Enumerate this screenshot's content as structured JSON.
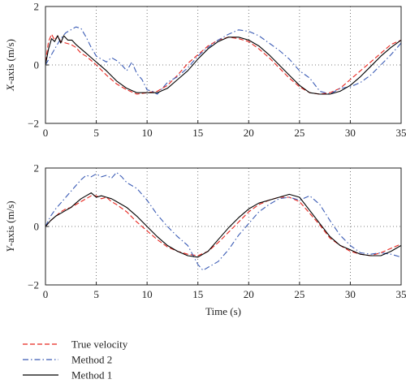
{
  "chart_data": [
    {
      "type": "line",
      "ylabel": "X-axis (m/s)",
      "xlabel": "",
      "xlim": [
        0,
        35
      ],
      "ylim": [
        -2,
        2
      ],
      "xticks": [
        0,
        5,
        10,
        15,
        20,
        25,
        30,
        35
      ],
      "yticks": [
        -2,
        0,
        2
      ],
      "grid": "dotted, vertical at x ticks, horizontal at 0",
      "series": [
        {
          "name": "True velocity",
          "color": "#e8261f",
          "style": "dashed",
          "x": [
            0,
            0.3,
            0.6,
            0.9,
            1.2,
            1.5,
            2,
            2.5,
            3,
            3.5,
            4,
            4.5,
            5,
            6,
            7,
            8,
            9,
            10,
            11,
            12,
            13,
            14,
            15,
            16,
            17,
            18,
            19,
            20,
            21,
            22,
            23,
            24,
            25,
            26,
            27,
            28,
            29,
            30,
            31,
            32,
            33,
            34,
            35
          ],
          "values": [
            0.1,
            0.8,
            1.05,
            0.85,
            1.0,
            0.8,
            0.75,
            0.7,
            0.6,
            0.4,
            0.3,
            0.15,
            0.0,
            -0.35,
            -0.65,
            -0.85,
            -1.0,
            -0.95,
            -0.9,
            -0.7,
            -0.35,
            0.05,
            0.35,
            0.65,
            0.85,
            0.95,
            0.9,
            0.8,
            0.55,
            0.25,
            -0.1,
            -0.45,
            -0.75,
            -0.95,
            -1.0,
            -0.95,
            -0.8,
            -0.5,
            -0.2,
            0.1,
            0.4,
            0.7,
            0.85
          ]
        },
        {
          "name": "Method 2",
          "color": "#3a5bb5",
          "style": "dashdot",
          "x": [
            0,
            0.5,
            1,
            1.5,
            2,
            2.5,
            3,
            3.5,
            4,
            4.5,
            5,
            5.5,
            6,
            6.5,
            7,
            7.5,
            8,
            8.5,
            9,
            9.5,
            10,
            10.5,
            11,
            12,
            13,
            14,
            15,
            16,
            17,
            18,
            19,
            20,
            21,
            22,
            23,
            24,
            25,
            26,
            27,
            28,
            29,
            30,
            31,
            32,
            33,
            34,
            35
          ],
          "values": [
            0.0,
            0.3,
            0.6,
            0.9,
            1.1,
            1.2,
            1.3,
            1.25,
            0.95,
            0.6,
            0.3,
            0.2,
            0.1,
            0.25,
            0.15,
            0.0,
            -0.2,
            0.1,
            -0.3,
            -0.5,
            -0.85,
            -0.9,
            -1.0,
            -0.6,
            -0.4,
            -0.1,
            0.3,
            0.6,
            0.85,
            1.05,
            1.2,
            1.15,
            1.0,
            0.75,
            0.5,
            0.2,
            -0.2,
            -0.45,
            -0.9,
            -1.0,
            -0.8,
            -0.75,
            -0.6,
            -0.35,
            0.0,
            0.35,
            0.75
          ]
        },
        {
          "name": "Method 1",
          "color": "#000000",
          "style": "solid",
          "x": [
            0,
            0.3,
            0.6,
            0.9,
            1.2,
            1.5,
            1.8,
            2.2,
            2.6,
            3,
            3.5,
            4,
            4.5,
            5,
            6,
            7,
            8,
            9,
            10,
            11,
            12,
            13,
            14,
            15,
            16,
            17,
            18,
            19,
            20,
            21,
            22,
            23,
            24,
            25,
            26,
            27,
            28,
            29,
            30,
            31,
            32,
            33,
            34,
            35
          ],
          "values": [
            0.0,
            0.55,
            0.9,
            0.8,
            1.0,
            0.75,
            1.0,
            0.85,
            0.85,
            0.7,
            0.55,
            0.4,
            0.25,
            0.1,
            -0.2,
            -0.55,
            -0.8,
            -0.95,
            -0.95,
            -0.95,
            -0.8,
            -0.5,
            -0.2,
            0.2,
            0.55,
            0.8,
            0.95,
            0.95,
            0.85,
            0.65,
            0.35,
            0.0,
            -0.35,
            -0.7,
            -0.95,
            -1.0,
            -1.0,
            -0.9,
            -0.7,
            -0.4,
            -0.05,
            0.3,
            0.6,
            0.85
          ]
        }
      ]
    },
    {
      "type": "line",
      "ylabel": "Y-axis (m/s)",
      "xlabel": "Time (s)",
      "xlim": [
        0,
        35
      ],
      "ylim": [
        -2,
        2
      ],
      "xticks": [
        0,
        5,
        10,
        15,
        20,
        25,
        30,
        35
      ],
      "yticks": [
        -2,
        0,
        2
      ],
      "grid": "dotted, vertical at x ticks, horizontal at 0",
      "series": [
        {
          "name": "True velocity",
          "color": "#e8261f",
          "style": "dashed",
          "x": [
            0,
            0.5,
            1,
            1.5,
            2,
            2.5,
            3,
            3.5,
            4,
            4.5,
            5,
            5.5,
            6,
            6.5,
            7,
            8,
            9,
            10,
            11,
            12,
            13,
            14,
            15,
            16,
            17,
            18,
            19,
            20,
            21,
            22,
            23,
            24,
            25,
            26,
            27,
            28,
            29,
            30,
            31,
            32,
            33,
            34,
            35
          ],
          "values": [
            0.0,
            0.2,
            0.35,
            0.5,
            0.6,
            0.65,
            0.75,
            0.85,
            0.95,
            1.05,
            1.05,
            0.95,
            1.0,
            0.85,
            0.75,
            0.5,
            0.15,
            -0.15,
            -0.45,
            -0.7,
            -0.85,
            -0.95,
            -1.0,
            -0.85,
            -0.55,
            -0.2,
            0.15,
            0.5,
            0.75,
            0.9,
            1.0,
            1.0,
            0.85,
            0.45,
            0.05,
            -0.4,
            -0.65,
            -0.85,
            -0.95,
            -1.0,
            -0.9,
            -0.75,
            -0.6
          ]
        },
        {
          "name": "Method 2",
          "color": "#3a5bb5",
          "style": "dashdot",
          "x": [
            0,
            0.5,
            1,
            1.5,
            2,
            2.5,
            3,
            3.5,
            4,
            4.5,
            5,
            5.5,
            6,
            6.5,
            7,
            7.5,
            8,
            9,
            10,
            11,
            12,
            13,
            14,
            15,
            15.5,
            16,
            17,
            18,
            19,
            20,
            21,
            22,
            23,
            24,
            25,
            26,
            27,
            28,
            29,
            30,
            31,
            32,
            33,
            34,
            35
          ],
          "values": [
            0.0,
            0.35,
            0.6,
            0.8,
            1.0,
            1.2,
            1.4,
            1.6,
            1.75,
            1.7,
            1.8,
            1.7,
            1.75,
            1.65,
            1.85,
            1.7,
            1.5,
            1.3,
            0.9,
            0.4,
            0.0,
            -0.35,
            -0.65,
            -1.3,
            -1.5,
            -1.4,
            -1.2,
            -0.8,
            -0.3,
            0.1,
            0.5,
            0.75,
            0.95,
            1.0,
            0.9,
            1.05,
            0.75,
            0.2,
            -0.3,
            -0.65,
            -0.9,
            -0.95,
            -0.9,
            -0.95,
            -1.05
          ]
        },
        {
          "name": "Method 1",
          "color": "#000000",
          "style": "solid",
          "x": [
            0,
            0.5,
            1,
            1.5,
            2,
            2.5,
            3,
            3.5,
            4,
            4.5,
            5,
            5.5,
            6,
            6.5,
            7,
            8,
            9,
            10,
            11,
            12,
            13,
            14,
            15,
            16,
            17,
            18,
            19,
            20,
            21,
            22,
            23,
            24,
            25,
            26,
            27,
            28,
            29,
            30,
            31,
            32,
            33,
            34,
            35
          ],
          "values": [
            0.0,
            0.2,
            0.35,
            0.45,
            0.55,
            0.65,
            0.8,
            0.95,
            1.05,
            1.15,
            1.0,
            1.05,
            1.0,
            0.95,
            0.85,
            0.65,
            0.35,
            0.0,
            -0.35,
            -0.65,
            -0.85,
            -1.0,
            -1.05,
            -0.85,
            -0.45,
            -0.05,
            0.3,
            0.6,
            0.8,
            0.9,
            1.0,
            1.1,
            1.0,
            0.55,
            0.1,
            -0.35,
            -0.65,
            -0.8,
            -0.95,
            -1.0,
            -1.0,
            -0.85,
            -0.65
          ]
        }
      ]
    }
  ],
  "legend": {
    "items": [
      {
        "label": "True velocity",
        "color": "#e8261f",
        "style": "dashed"
      },
      {
        "label": "Method 2",
        "color": "#3a5bb5",
        "style": "dashdot"
      },
      {
        "label": "Method 1",
        "color": "#000000",
        "style": "solid"
      }
    ]
  }
}
